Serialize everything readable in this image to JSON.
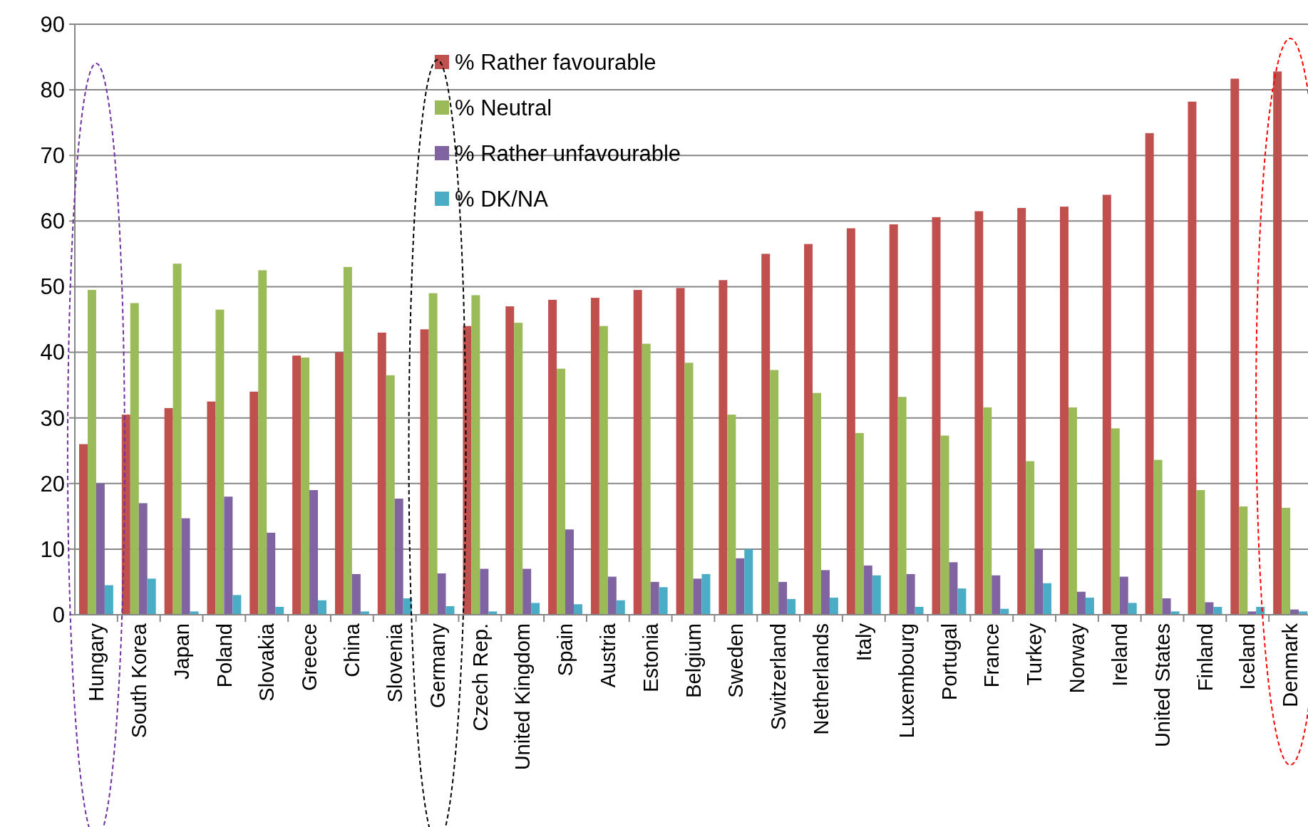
{
  "chart_data": {
    "type": "bar",
    "categories": [
      "Hungary",
      "South Korea",
      "Japan",
      "Poland",
      "Slovakia",
      "Greece",
      "China",
      "Slovenia",
      "Germany",
      "Czech Rep.",
      "United Kingdom",
      "Spain",
      "Austria",
      "Estonia",
      "Belgium",
      "Sweden",
      "Switzerland",
      "Netherlands",
      "Italy",
      "Luxembourg",
      "Portugal",
      "France",
      "Turkey",
      "Norway",
      "Ireland",
      "United States",
      "Finland",
      "Iceland",
      "Denmark"
    ],
    "series": [
      {
        "name": "% Rather favourable",
        "color": "#c0504d",
        "values": [
          26,
          30.5,
          31.5,
          32.5,
          34,
          39.5,
          40,
          43,
          43.5,
          44,
          47,
          48,
          48.3,
          49.5,
          49.8,
          51,
          55,
          56.5,
          58.9,
          59.5,
          60.6,
          61.5,
          62,
          62.2,
          64,
          73.4,
          78.2,
          81.7,
          82.8
        ]
      },
      {
        "name": "% Neutral",
        "color": "#9bbb59",
        "values": [
          49.5,
          47.5,
          53.5,
          46.5,
          52.5,
          39.2,
          53,
          36.5,
          49,
          48.7,
          44.5,
          37.5,
          44,
          41.3,
          38.4,
          30.5,
          37.3,
          33.8,
          27.7,
          33.2,
          27.3,
          31.6,
          23.4,
          31.6,
          28.4,
          23.6,
          19,
          16.5,
          16.3
        ]
      },
      {
        "name": "% Rather unfavourable",
        "color": "#8064a2",
        "values": [
          20,
          17,
          14.7,
          18,
          12.5,
          19,
          6.2,
          17.7,
          6.3,
          7,
          7,
          13,
          5.8,
          5,
          5.5,
          8.6,
          5,
          6.8,
          7.5,
          6.2,
          8,
          6,
          10,
          3.5,
          5.8,
          2.5,
          1.9,
          0.5,
          0.8
        ]
      },
      {
        "name": "% DK/NA",
        "color": "#4bacc6",
        "values": [
          4.5,
          5.5,
          0.5,
          3,
          1.2,
          2.2,
          0.5,
          2.5,
          1.3,
          0.5,
          1.8,
          1.6,
          2.2,
          4.2,
          6.2,
          10,
          2.4,
          2.6,
          6,
          1.2,
          4,
          0.9,
          4.8,
          2.6,
          1.8,
          0.5,
          1.2,
          1.2,
          0.5
        ]
      }
    ],
    "ylim": [
      0,
      90
    ],
    "yticks": [
      0,
      10,
      20,
      30,
      40,
      50,
      60,
      70,
      80,
      90
    ],
    "grid": "y",
    "legend": "top"
  }
}
